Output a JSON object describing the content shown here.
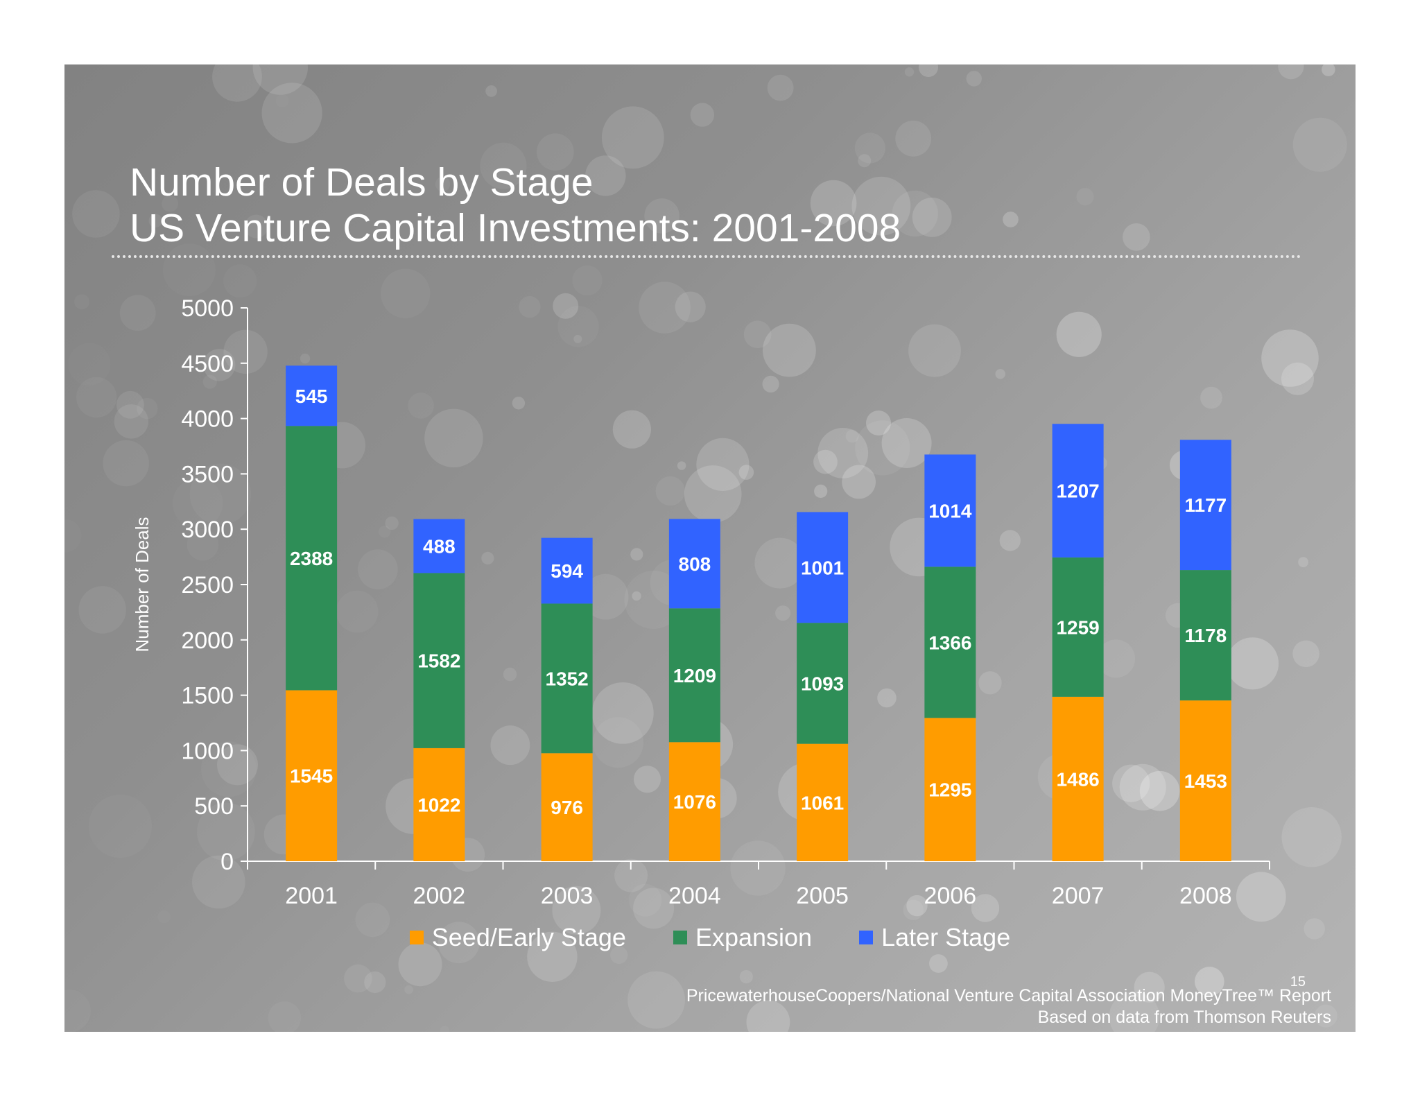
{
  "slide": {
    "title_line1": "Number of Deals by Stage",
    "title_line2": "US Venture Capital Investments: 2001-2008",
    "page_number": "15",
    "source_line1": "PricewaterhouseCoopers/National Venture Capital Association MoneyTree™ Report",
    "source_line2": "Based on data from Thomson Reuters"
  },
  "colors": {
    "seed": "#ff9c00",
    "expansion": "#2e8e57",
    "later": "#3163ff",
    "text": "#ffffff"
  },
  "chart_data": {
    "type": "bar",
    "stacked": true,
    "title": "Number of Deals by Stage",
    "subtitle": "US Venture Capital Investments: 2001-2008",
    "xlabel": "",
    "ylabel": "Number of Deals",
    "ylim": [
      0,
      5000
    ],
    "yticks": [
      0,
      500,
      1000,
      1500,
      2000,
      2500,
      3000,
      3500,
      4000,
      4500,
      5000
    ],
    "categories": [
      "2001",
      "2002",
      "2003",
      "2004",
      "2005",
      "2006",
      "2007",
      "2008"
    ],
    "series": [
      {
        "name": "Seed/Early Stage",
        "color": "#ff9c00",
        "values": [
          1545,
          1022,
          976,
          1076,
          1061,
          1295,
          1486,
          1453
        ]
      },
      {
        "name": "Expansion",
        "color": "#2e8e57",
        "values": [
          2388,
          1582,
          1352,
          1209,
          1093,
          1366,
          1259,
          1178
        ]
      },
      {
        "name": "Later Stage",
        "color": "#3163ff",
        "values": [
          545,
          488,
          594,
          808,
          1001,
          1014,
          1207,
          1177
        ]
      }
    ],
    "legend_position": "bottom",
    "grid": false
  }
}
